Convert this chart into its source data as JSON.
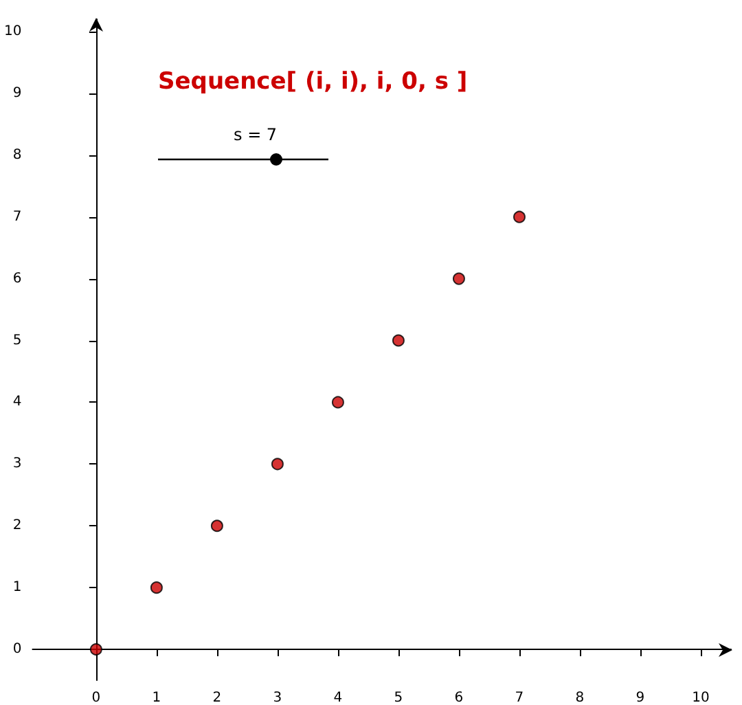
{
  "chart_data": {
    "type": "scatter",
    "title": "Sequence[ (i, i), i, 0, s ]",
    "annotations": [
      "s = 7"
    ],
    "x": [
      0,
      1,
      2,
      3,
      4,
      5,
      6,
      7
    ],
    "series": [
      {
        "color": "#cc0000",
        "values": [
          0,
          1,
          2,
          3,
          4,
          5,
          6,
          7
        ]
      }
    ],
    "xlim": [
      -1.05,
      10.5
    ],
    "ylim": [
      -0.5,
      10.2
    ],
    "xticks": [
      0,
      1,
      2,
      3,
      4,
      5,
      6,
      7,
      8,
      9,
      10
    ],
    "yticks": [
      0,
      1,
      2,
      3,
      4,
      5,
      6,
      7,
      8,
      9,
      10
    ],
    "marker": "circle"
  }
}
